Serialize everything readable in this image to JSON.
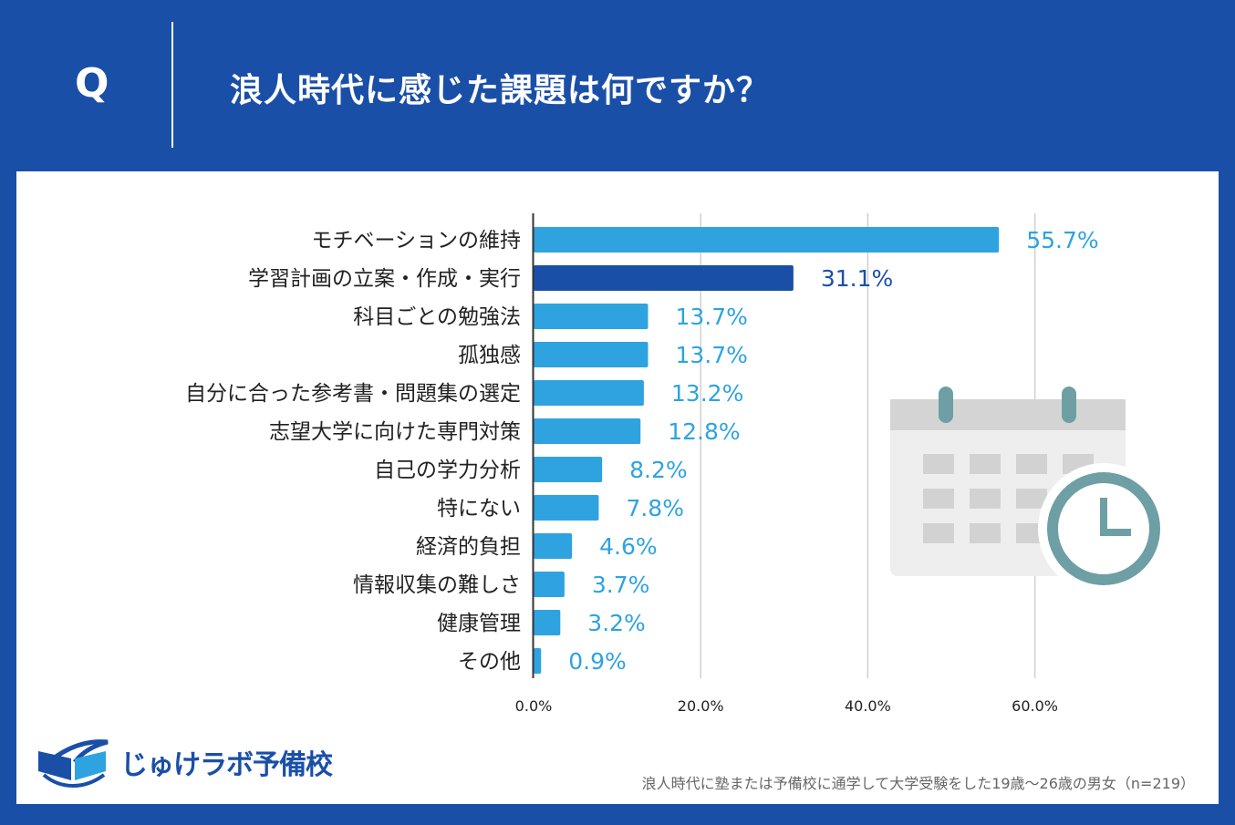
{
  "header": {
    "q_letter": "Q",
    "title": "浪人時代に感じた課題は何ですか？"
  },
  "colors": {
    "background": "#1a4fa8",
    "bar": "#2ea3e0",
    "bar_highlight": "#1a4fa8",
    "gridline": "#d0d0d0"
  },
  "chart_data": {
    "type": "bar",
    "orientation": "horizontal",
    "title": "浪人時代に感じた課題は何ですか？",
    "categories": [
      "モチベーションの維持",
      "学習計画の立案・作成・実行",
      "科目ごとの勉強法",
      "孤独感",
      "自分に合った参考書・問題集の選定",
      "志望大学に向けた専門対策",
      "自己の学力分析",
      "特にない",
      "経済的負担",
      "情報収集の難しさ",
      "健康管理",
      "その他"
    ],
    "values": [
      55.7,
      31.1,
      13.7,
      13.7,
      13.2,
      12.8,
      8.2,
      7.8,
      4.6,
      3.7,
      3.2,
      0.9
    ],
    "value_labels": [
      "55.7%",
      "31.1%",
      "13.7%",
      "13.7%",
      "13.2%",
      "12.8%",
      "8.2%",
      "7.8%",
      "4.6%",
      "3.7%",
      "3.2%",
      "0.9%"
    ],
    "highlight_index": 1,
    "xlim": [
      0,
      70
    ],
    "xticks": [
      0,
      20,
      40,
      60
    ],
    "xtick_labels": [
      "0.0%",
      "20.0%",
      "40.0%",
      "60.0%"
    ],
    "grid": true,
    "xlabel": "",
    "ylabel": ""
  },
  "illustration": {
    "icon": "calendar-clock-icon"
  },
  "logo": {
    "text": "じゅけラボ予備校"
  },
  "footnote": "浪人時代に塾または予備校に通学して大学受験をした19歳～26歳の男女（n=219）"
}
